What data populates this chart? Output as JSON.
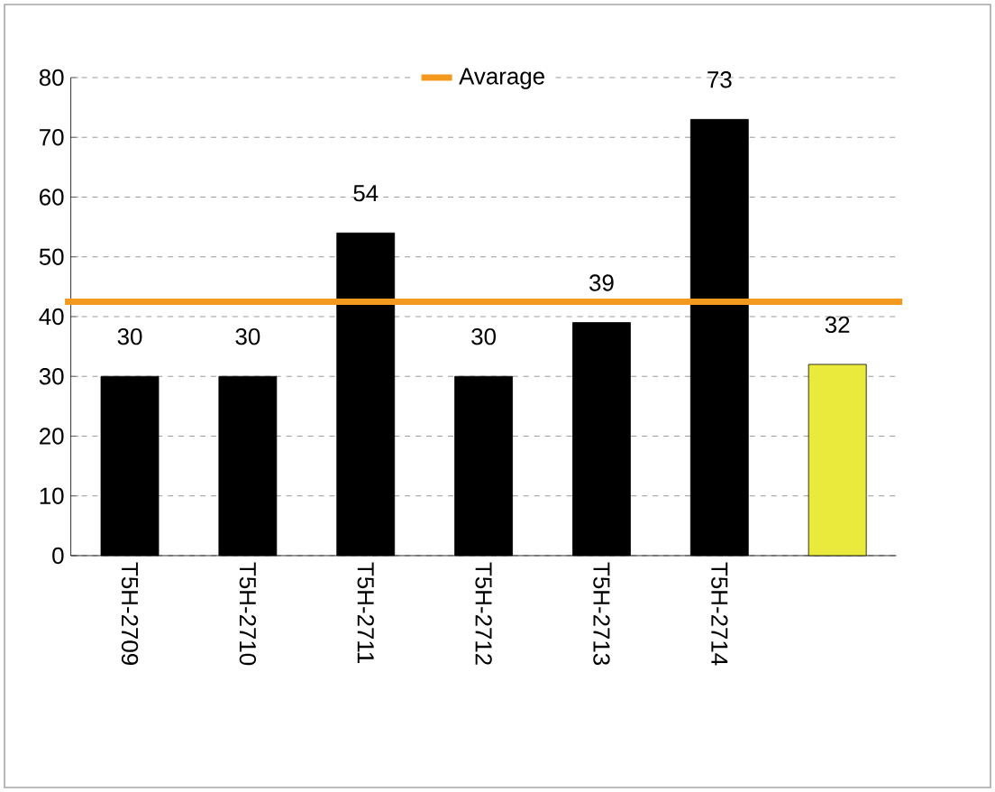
{
  "chart_data": {
    "type": "bar",
    "categories": [
      "T5H-2709",
      "T5H-2710",
      "T5H-2711",
      "T5H-2712",
      "T5H-2713",
      "T5H-2714",
      null
    ],
    "values": [
      30,
      30,
      54,
      30,
      39,
      73,
      32
    ],
    "colors": [
      "#000000",
      "#000000",
      "#000000",
      "#000000",
      "#000000",
      "#000000",
      "#eaea3c"
    ],
    "data_labels": true,
    "ylim": [
      0,
      80
    ],
    "yticks": [
      0,
      10,
      20,
      30,
      40,
      50,
      60,
      70,
      80
    ],
    "grid": "y",
    "legend": "top",
    "ref_lines": [
      {
        "axis": "y",
        "value": 42.5,
        "label": "Avarage",
        "color": "#f39a1e",
        "line_style": "solid"
      }
    ]
  }
}
